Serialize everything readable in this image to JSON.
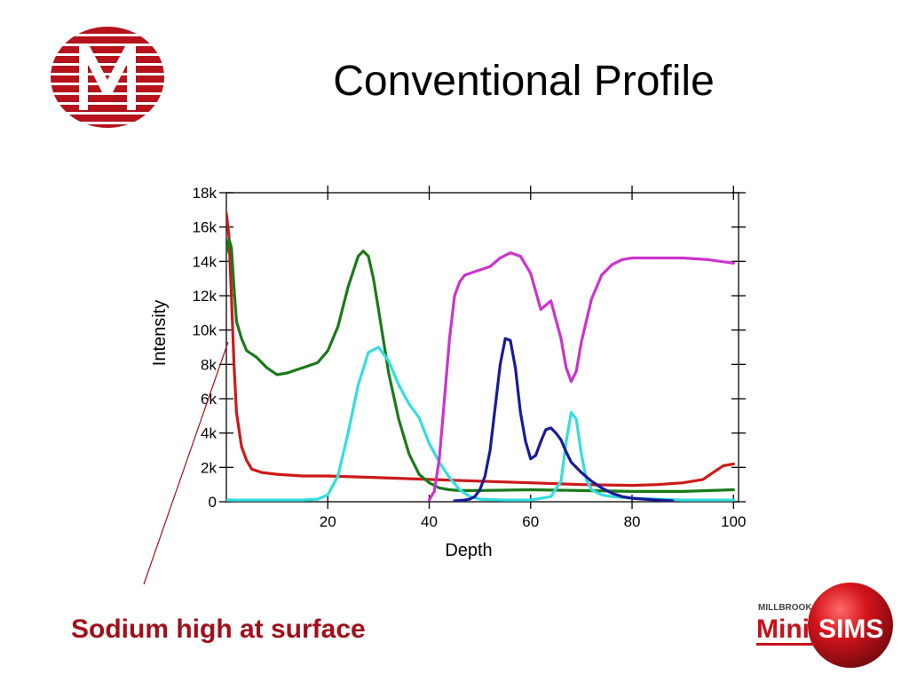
{
  "slide": {
    "title": "Conventional Profile",
    "caption": "Sodium high at surface"
  },
  "logos": {
    "left": {
      "name": "company-logo",
      "color": "#b5121b"
    },
    "right": {
      "brand_top": "MILLBROOK",
      "brand_mini": "Mini",
      "brand_sims": "SIMS",
      "color": "#c8101a"
    }
  },
  "colors": {
    "title_text": "#000000",
    "caption_text": "#a0101a",
    "axis": "#000000"
  },
  "chart_data": {
    "type": "line",
    "title": "",
    "xlabel": "Depth",
    "ylabel": "Intensity",
    "xlim": [
      0,
      101
    ],
    "ylim": [
      0,
      18000
    ],
    "x_ticks": [
      20,
      40,
      60,
      80,
      100
    ],
    "x_tick_labels": [
      "20",
      "40",
      "60",
      "80",
      "100"
    ],
    "y_ticks": [
      0,
      2000,
      4000,
      6000,
      8000,
      10000,
      12000,
      14000,
      16000,
      18000
    ],
    "y_tick_labels": [
      "0",
      "2k",
      "4k",
      "6k",
      "8k",
      "10k",
      "12k",
      "14k",
      "16k",
      "18k"
    ],
    "grid": false,
    "legend": "none",
    "series": [
      {
        "color": "#cc1a1a",
        "x": [
          0,
          0.5,
          1,
          1.5,
          2,
          3,
          4,
          5,
          7,
          10,
          15,
          20,
          30,
          40,
          50,
          60,
          70,
          80,
          85,
          90,
          94,
          96,
          98,
          100
        ],
        "y": [
          16800,
          15500,
          12000,
          8000,
          5200,
          3200,
          2400,
          1900,
          1700,
          1600,
          1500,
          1500,
          1400,
          1300,
          1200,
          1100,
          1000,
          950,
          1000,
          1100,
          1300,
          1700,
          2100,
          2200
        ]
      },
      {
        "color": "#1a7a1a",
        "x": [
          0,
          0.5,
          1,
          1.5,
          2,
          3,
          4,
          5,
          6,
          8,
          10,
          12,
          14,
          16,
          18,
          20,
          22,
          24,
          26,
          27,
          28,
          29,
          30,
          32,
          34,
          36,
          38,
          40,
          42,
          44,
          46,
          50,
          60,
          70,
          80,
          90,
          100
        ],
        "y": [
          14500,
          15300,
          14800,
          12500,
          10500,
          9500,
          8800,
          8600,
          8400,
          7800,
          7400,
          7500,
          7700,
          7900,
          8100,
          8800,
          10200,
          12500,
          14300,
          14600,
          14300,
          13000,
          11200,
          7500,
          4800,
          2800,
          1600,
          1100,
          800,
          700,
          650,
          650,
          700,
          650,
          600,
          600,
          700
        ]
      },
      {
        "color": "#33dede",
        "x": [
          0,
          5,
          10,
          15,
          18,
          20,
          22,
          24,
          26,
          28,
          30,
          32,
          34,
          36,
          38,
          40,
          42,
          44,
          46,
          48,
          50,
          55,
          60,
          64,
          66,
          67,
          68,
          69,
          70,
          71,
          72,
          74,
          76,
          80,
          90,
          100
        ],
        "y": [
          100,
          100,
          100,
          100,
          150,
          400,
          1500,
          4000,
          6800,
          8700,
          9000,
          8200,
          6800,
          5700,
          4900,
          3400,
          2300,
          1400,
          700,
          300,
          150,
          100,
          100,
          300,
          1200,
          3500,
          5200,
          4800,
          2800,
          1300,
          700,
          400,
          300,
          200,
          100,
          100
        ]
      },
      {
        "color": "#cc33cc",
        "x": [
          40,
          41,
          42,
          43,
          44,
          45,
          46,
          47,
          48,
          49,
          50,
          52,
          54,
          56,
          58,
          60,
          62,
          64,
          66,
          67,
          68,
          69,
          70,
          72,
          74,
          76,
          78,
          80,
          85,
          90,
          95,
          100
        ],
        "y": [
          100,
          600,
          2500,
          6000,
          9500,
          12000,
          12800,
          13200,
          13300,
          13400,
          13500,
          13700,
          14200,
          14500,
          14300,
          13300,
          11200,
          11700,
          9500,
          7800,
          7000,
          7600,
          9300,
          11800,
          13200,
          13800,
          14100,
          14200,
          14200,
          14200,
          14100,
          13900
        ]
      },
      {
        "color": "#1a1a99",
        "x": [
          45,
          47,
          48,
          49,
          50,
          51,
          52,
          53,
          54,
          55,
          56,
          57,
          58,
          59,
          60,
          61,
          62,
          63,
          64,
          65,
          66,
          67,
          68,
          70,
          72,
          74,
          76,
          78,
          80,
          85,
          88
        ],
        "y": [
          50,
          100,
          150,
          300,
          700,
          1500,
          3000,
          5500,
          8000,
          9500,
          9400,
          7800,
          5200,
          3500,
          2500,
          2700,
          3500,
          4200,
          4300,
          4000,
          3600,
          2900,
          2300,
          1700,
          1200,
          800,
          500,
          300,
          200,
          100,
          50
        ]
      }
    ]
  }
}
